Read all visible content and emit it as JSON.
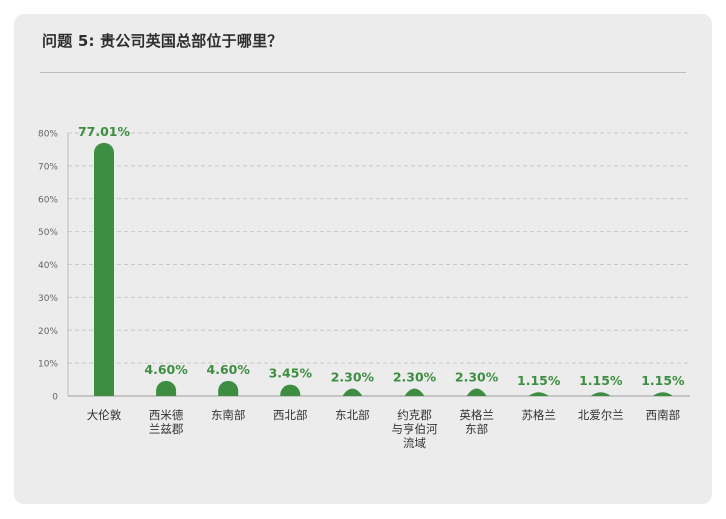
{
  "title": "问题 5: 贵公司英国总部位于哪里？",
  "colors": {
    "background": "#ececec",
    "bar": "#3e8e41",
    "value_label": "#3e8e41",
    "grid": "#c8c8c8",
    "text": "#333333"
  },
  "chart_data": {
    "type": "bar",
    "title": "问题 5: 贵公司英国总部位于哪里？",
    "categories": [
      "大伦敦",
      "西米德\n兰兹郡",
      "东南部",
      "西北部",
      "东北部",
      "约克郡\n与亨伯河\n流域",
      "英格兰\n东部",
      "苏格兰",
      "北爱尔兰",
      "西南部"
    ],
    "values": [
      77.01,
      4.6,
      4.6,
      3.45,
      2.3,
      2.3,
      2.3,
      1.15,
      1.15,
      1.15
    ],
    "value_labels": [
      "77.01%",
      "4.60%",
      "4.60%",
      "3.45%",
      "2.30%",
      "2.30%",
      "2.30%",
      "1.15%",
      "1.15%",
      "1.15%"
    ],
    "y_ticks": [
      0,
      10,
      20,
      30,
      40,
      50,
      60,
      70,
      80
    ],
    "y_tick_labels": [
      "0",
      "10%",
      "20%",
      "30%",
      "40%",
      "50%",
      "60%",
      "70%",
      "80%"
    ],
    "ylim": [
      0,
      80
    ],
    "xlabel": "",
    "ylabel": "",
    "grid": true,
    "legend": "none"
  }
}
